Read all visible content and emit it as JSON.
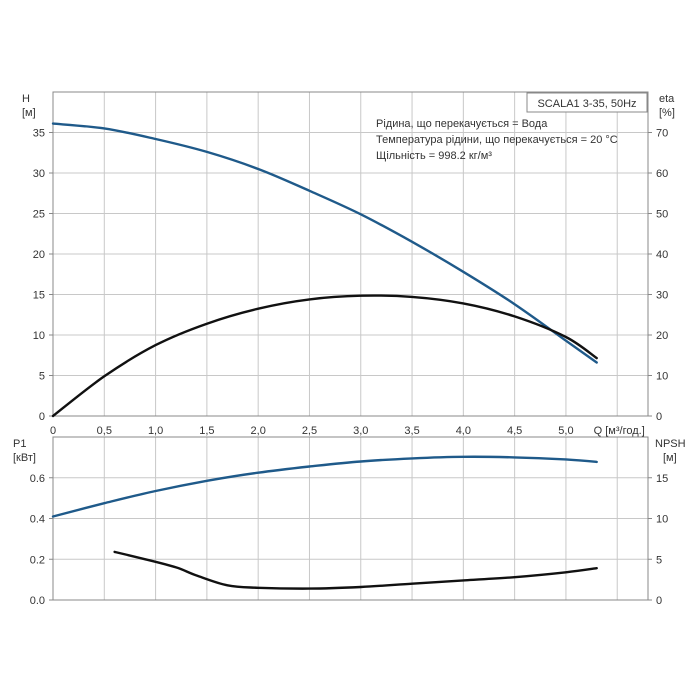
{
  "chart_data": [
    {
      "type": "line",
      "legend_box": "SCALA1 3-35, 50Hz",
      "annotations": [
        "Рідина, що перекачується = Вода",
        "Температура рідини, що перекачується = 20 °C",
        "Щільність = 998.2 кг/м³"
      ],
      "left_axis": {
        "title": "H",
        "unit": "[м]",
        "range": [
          0,
          40
        ],
        "ticks": [
          "0",
          "5",
          "10",
          "15",
          "20",
          "25",
          "30",
          "35"
        ]
      },
      "right_axis": {
        "title": "eta",
        "unit": "[%]",
        "range": [
          0,
          80
        ],
        "ticks": [
          "0",
          "10",
          "20",
          "30",
          "40",
          "50",
          "60",
          "70"
        ]
      },
      "x_axis": {
        "label": "Q [м³/год.]",
        "range": [
          0,
          5.8
        ],
        "ticks": [
          "0",
          "0,5",
          "1,0",
          "1,5",
          "2,0",
          "2,5",
          "3,0",
          "3,5",
          "4,0",
          "4,5",
          "5,0"
        ]
      },
      "grid": true,
      "series": [
        {
          "axis": "left",
          "color": "#1f5a8a",
          "x": [
            0,
            0.5,
            1.0,
            1.5,
            2.0,
            2.5,
            3.0,
            3.5,
            4.0,
            4.5,
            5.0,
            5.3
          ],
          "y": [
            36.1,
            35.5,
            34.2,
            32.6,
            30.5,
            27.8,
            24.9,
            21.5,
            17.8,
            13.8,
            9.3,
            6.6
          ]
        },
        {
          "axis": "right",
          "color": "#111111",
          "x": [
            0,
            0.5,
            1.0,
            1.5,
            2.0,
            2.5,
            3.0,
            3.5,
            4.0,
            4.5,
            5.0,
            5.3
          ],
          "y": [
            0,
            9.8,
            17.5,
            22.8,
            26.5,
            28.8,
            29.7,
            29.4,
            27.8,
            24.6,
            19.5,
            14.3
          ]
        }
      ]
    },
    {
      "type": "line",
      "left_axis": {
        "title": "P1",
        "unit": "[кВт]",
        "range": [
          0,
          0.8
        ],
        "ticks": [
          "0.0",
          "0.2",
          "0.4",
          "0.6"
        ]
      },
      "right_axis": {
        "title": "NPSH",
        "unit": "[м]",
        "range": [
          0,
          20
        ],
        "ticks": [
          "0",
          "5",
          "10",
          "15"
        ]
      },
      "x_axis": {
        "range": [
          0,
          5.8
        ]
      },
      "grid": true,
      "series": [
        {
          "axis": "left",
          "color": "#1f5a8a",
          "x": [
            0,
            0.5,
            1.0,
            1.5,
            2.0,
            2.5,
            3.0,
            3.5,
            4.0,
            4.5,
            5.0,
            5.3
          ],
          "y": [
            0.41,
            0.475,
            0.535,
            0.585,
            0.625,
            0.655,
            0.68,
            0.695,
            0.703,
            0.7,
            0.69,
            0.678
          ]
        },
        {
          "axis": "right",
          "color": "#111111",
          "x": [
            0.6,
            0.9,
            1.2,
            1.4,
            1.7,
            2.0,
            2.5,
            3.0,
            3.5,
            4.0,
            4.5,
            5.0,
            5.3
          ],
          "y": [
            5.9,
            5.0,
            4.0,
            3.0,
            1.8,
            1.5,
            1.4,
            1.6,
            2.0,
            2.4,
            2.8,
            3.4,
            3.9
          ]
        }
      ]
    }
  ]
}
